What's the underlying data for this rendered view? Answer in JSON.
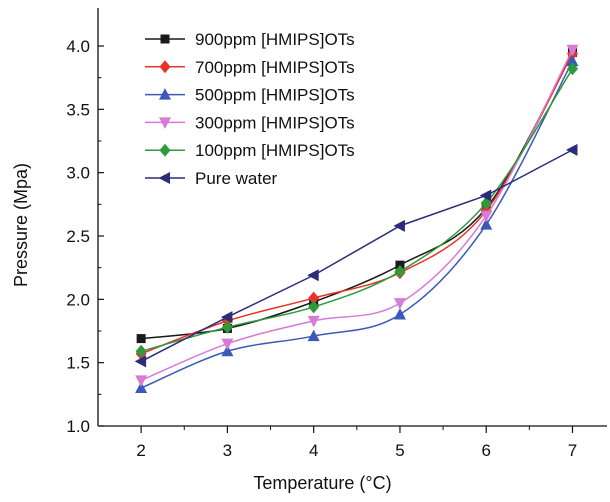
{
  "chart_data": {
    "type": "line",
    "title": "",
    "xlabel": "Temperature (°C)",
    "ylabel": "Pressure (Mpa)",
    "xlim": [
      1.5,
      7.4
    ],
    "ylim": [
      1.0,
      4.3
    ],
    "x": [
      2,
      3,
      4,
      5,
      6,
      7
    ],
    "x_ticks": [
      "2",
      "3",
      "4",
      "5",
      "6",
      "7"
    ],
    "y_ticks": [
      "1.0",
      "1.5",
      "2.0",
      "2.5",
      "3.0",
      "3.5",
      "4.0"
    ],
    "y_tick_values": [
      1.0,
      1.5,
      2.0,
      2.5,
      3.0,
      3.5,
      4.0
    ],
    "grid": false,
    "legend_position": "top-left",
    "series": [
      {
        "name": "900ppm [HMIPS]OTs",
        "color": "#1a1a1a",
        "marker": "square",
        "values": [
          1.69,
          1.77,
          1.98,
          2.27,
          2.72,
          3.95
        ]
      },
      {
        "name": "700ppm [HMIPS]OTs",
        "color": "#e8322a",
        "marker": "diamond",
        "values": [
          1.57,
          1.83,
          2.01,
          2.21,
          2.7,
          3.94
        ]
      },
      {
        "name": "500ppm [HMIPS]OTs",
        "color": "#3a59b8",
        "marker": "triangle-up",
        "values": [
          1.3,
          1.59,
          1.71,
          1.88,
          2.59,
          3.88
        ]
      },
      {
        "name": "300ppm [HMIPS]OTs",
        "color": "#d77ad8",
        "marker": "triangle-down",
        "values": [
          1.36,
          1.65,
          1.83,
          1.97,
          2.66,
          3.97
        ]
      },
      {
        "name": "100ppm [HMIPS]OTs",
        "color": "#2f9a3a",
        "marker": "diamond",
        "values": [
          1.59,
          1.78,
          1.94,
          2.22,
          2.76,
          3.82
        ]
      },
      {
        "name": "Pure water",
        "color": "#2b2d7a",
        "marker": "triangle-left",
        "values": [
          1.51,
          1.86,
          2.19,
          2.58,
          2.82,
          3.18
        ]
      }
    ]
  }
}
